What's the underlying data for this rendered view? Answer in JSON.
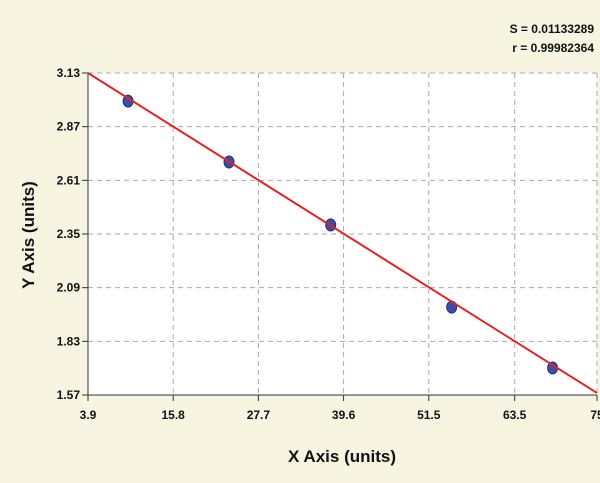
{
  "chart_data": {
    "type": "scatter",
    "x_label": "X Axis (units)",
    "y_label": "Y Axis (units)",
    "annotations": [
      "S = 0.01133289",
      "r = 0.99982364"
    ],
    "x": [
      9.5,
      23.6,
      37.8,
      54.7,
      68.8
    ],
    "values": [
      2.994,
      2.699,
      2.394,
      1.996,
      1.701
    ],
    "color": "#3b4ea6",
    "fit_line": {
      "color": "#e32222",
      "x": [
        3.9,
        75
      ],
      "values": [
        3.13,
        1.58
      ]
    },
    "xlim": [
      3.9,
      75
    ],
    "xticks": [
      3.9,
      15.8,
      27.7,
      39.6,
      51.5,
      63.5,
      75
    ],
    "ylim": [
      1.57,
      3.13
    ],
    "yticks": [
      1.57,
      1.83,
      2.09,
      2.35,
      2.61,
      2.87,
      3.13
    ],
    "grid": true
  }
}
